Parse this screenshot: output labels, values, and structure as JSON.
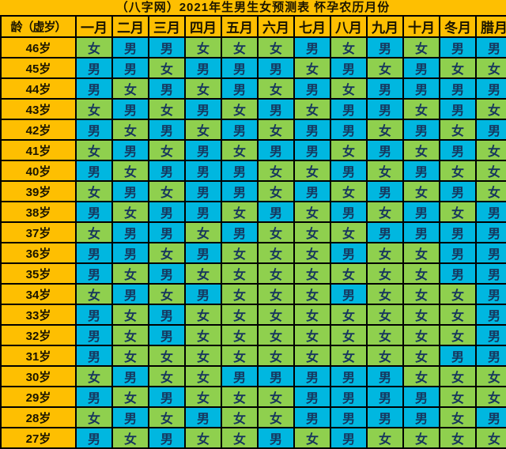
{
  "title": "（八字网）2021年生男生女预测表 怀孕农历月份",
  "chart_data": {
    "type": "table",
    "title": "（八字网）2021年生男生女预测表 怀孕农历月份",
    "corner_header": "龄（虚岁）",
    "columns": [
      "一月",
      "二月",
      "三月",
      "四月",
      "五月",
      "六月",
      "七月",
      "八月",
      "九月",
      "十月",
      "冬月",
      "腊月"
    ],
    "legend": {
      "boy": "男",
      "girl": "女"
    },
    "rows": [
      {
        "age": "46岁",
        "values": [
          "女",
          "男",
          "男",
          "女",
          "女",
          "女",
          "男",
          "女",
          "男",
          "女",
          "男",
          "男"
        ]
      },
      {
        "age": "45岁",
        "values": [
          "男",
          "男",
          "女",
          "男",
          "男",
          "男",
          "女",
          "男",
          "女",
          "男",
          "女",
          "女"
        ]
      },
      {
        "age": "44岁",
        "values": [
          "男",
          "女",
          "男",
          "女",
          "男",
          "女",
          "男",
          "女",
          "男",
          "男",
          "男",
          "男"
        ]
      },
      {
        "age": "43岁",
        "values": [
          "女",
          "男",
          "女",
          "男",
          "女",
          "男",
          "女",
          "男",
          "男",
          "女",
          "男",
          "女"
        ]
      },
      {
        "age": "42岁",
        "values": [
          "男",
          "女",
          "男",
          "女",
          "男",
          "女",
          "男",
          "男",
          "女",
          "男",
          "女",
          "男"
        ]
      },
      {
        "age": "41岁",
        "values": [
          "女",
          "男",
          "女",
          "男",
          "女",
          "男",
          "男",
          "女",
          "男",
          "女",
          "男",
          "女"
        ]
      },
      {
        "age": "40岁",
        "values": [
          "男",
          "女",
          "男",
          "男",
          "男",
          "女",
          "女",
          "男",
          "女",
          "男",
          "女",
          "女"
        ]
      },
      {
        "age": "39岁",
        "values": [
          "女",
          "男",
          "女",
          "男",
          "男",
          "女",
          "男",
          "女",
          "男",
          "女",
          "男",
          "女"
        ]
      },
      {
        "age": "38岁",
        "values": [
          "男",
          "女",
          "男",
          "男",
          "女",
          "男",
          "女",
          "男",
          "女",
          "男",
          "女",
          "男"
        ]
      },
      {
        "age": "37岁",
        "values": [
          "女",
          "男",
          "男",
          "女",
          "男",
          "女",
          "女",
          "女",
          "男",
          "男",
          "男",
          "男"
        ]
      },
      {
        "age": "36岁",
        "values": [
          "男",
          "男",
          "女",
          "男",
          "女",
          "女",
          "女",
          "男",
          "女",
          "女",
          "男",
          "男"
        ]
      },
      {
        "age": "35岁",
        "values": [
          "男",
          "女",
          "男",
          "女",
          "女",
          "女",
          "女",
          "女",
          "女",
          "女",
          "男",
          "男"
        ]
      },
      {
        "age": "34岁",
        "values": [
          "女",
          "男",
          "女",
          "男",
          "女",
          "女",
          "女",
          "男",
          "女",
          "女",
          "女",
          "男"
        ]
      },
      {
        "age": "33岁",
        "values": [
          "男",
          "女",
          "男",
          "女",
          "女",
          "女",
          "女",
          "女",
          "女",
          "女",
          "女",
          "男"
        ]
      },
      {
        "age": "32岁",
        "values": [
          "男",
          "女",
          "男",
          "女",
          "女",
          "女",
          "女",
          "女",
          "女",
          "女",
          "女",
          "男"
        ]
      },
      {
        "age": "31岁",
        "values": [
          "男",
          "女",
          "女",
          "女",
          "女",
          "女",
          "女",
          "女",
          "女",
          "女",
          "男",
          "男"
        ]
      },
      {
        "age": "30岁",
        "values": [
          "女",
          "男",
          "女",
          "女",
          "男",
          "男",
          "男",
          "男",
          "男",
          "女",
          "女",
          "女"
        ]
      },
      {
        "age": "29岁",
        "values": [
          "男",
          "女",
          "男",
          "女",
          "女",
          "女",
          "男",
          "男",
          "男",
          "男",
          "女",
          "女"
        ]
      },
      {
        "age": "28岁",
        "values": [
          "女",
          "男",
          "女",
          "男",
          "女",
          "女",
          "男",
          "男",
          "男",
          "男",
          "女",
          "男"
        ]
      },
      {
        "age": "27岁",
        "values": [
          "男",
          "女",
          "男",
          "女",
          "女",
          "男",
          "女",
          "男",
          "女",
          "女",
          "女",
          "女"
        ]
      }
    ],
    "colors": {
      "background": "#FEBF01",
      "boy_cell": "#00B7E0",
      "girl_cell": "#8FD04E",
      "cell_text": "#17365D",
      "border": "#000000"
    }
  }
}
